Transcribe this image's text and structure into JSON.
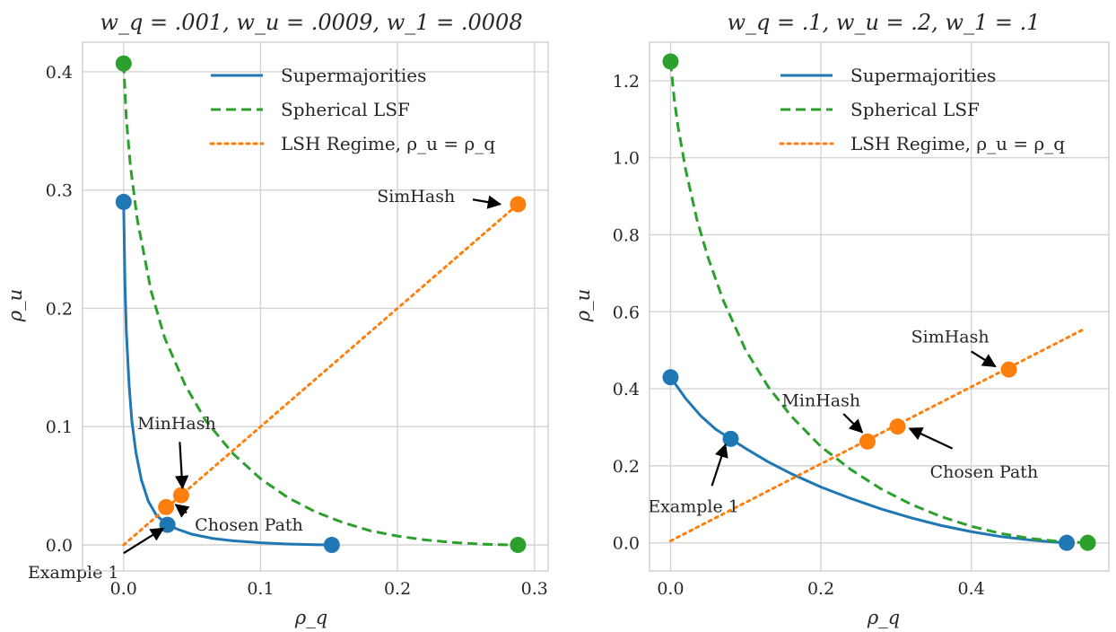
{
  "colors": {
    "supermajorities": "#1f77b4",
    "lsf": "#2ca02c",
    "lsh": "#ff7f0e",
    "arrow": "#000000"
  },
  "chart_data": [
    {
      "type": "line",
      "title": "w_q = .001, w_u = .0009, w_1 = .0008",
      "xlabel": "ρ_q",
      "ylabel": "ρ_u",
      "xlim": [
        -0.03,
        0.31
      ],
      "ylim": [
        -0.022,
        0.425
      ],
      "xticks": [
        0.0,
        0.1,
        0.2,
        0.3
      ],
      "xtick_labels": [
        "0.0",
        "0.1",
        "0.2",
        "0.3"
      ],
      "yticks": [
        0.0,
        0.1,
        0.2,
        0.3,
        0.4
      ],
      "ytick_labels": [
        "0.0",
        "0.1",
        "0.2",
        "0.3",
        "0.4"
      ],
      "grid": true,
      "legend_position": "top-right",
      "series": [
        {
          "name": "Supermajorities",
          "style": "solid",
          "color_key": "supermajorities",
          "x": [
            0.0,
            0.001,
            0.002,
            0.004,
            0.006,
            0.009,
            0.013,
            0.018,
            0.024,
            0.032,
            0.04,
            0.05,
            0.065,
            0.08,
            0.1,
            0.12,
            0.14,
            0.152
          ],
          "y": [
            0.29,
            0.22,
            0.18,
            0.135,
            0.105,
            0.078,
            0.055,
            0.037,
            0.025,
            0.017,
            0.013,
            0.009,
            0.0055,
            0.0035,
            0.0018,
            0.0008,
            0.0002,
            0.0
          ]
        },
        {
          "name": "Spherical LSF",
          "style": "dashed",
          "color_key": "lsf",
          "x": [
            0.0,
            0.002,
            0.005,
            0.01,
            0.02,
            0.03,
            0.045,
            0.06,
            0.08,
            0.1,
            0.12,
            0.14,
            0.16,
            0.18,
            0.2,
            0.22,
            0.24,
            0.26,
            0.275,
            0.288
          ],
          "y": [
            0.407,
            0.36,
            0.32,
            0.275,
            0.215,
            0.175,
            0.135,
            0.105,
            0.077,
            0.056,
            0.04,
            0.028,
            0.019,
            0.012,
            0.0075,
            0.0043,
            0.0021,
            0.0008,
            0.0002,
            0.0
          ]
        },
        {
          "name": "LSH Regime, ρ_u = ρ_q",
          "style": "dotted",
          "color_key": "lsh",
          "x": [
            0.0,
            0.288
          ],
          "y": [
            0.0,
            0.288
          ]
        }
      ],
      "points": [
        {
          "x": 0.0,
          "y": 0.29,
          "color_key": "supermajorities"
        },
        {
          "x": 0.032,
          "y": 0.017,
          "color_key": "supermajorities"
        },
        {
          "x": 0.152,
          "y": 0.0,
          "color_key": "supermajorities"
        },
        {
          "x": 0.0,
          "y": 0.407,
          "color_key": "lsf"
        },
        {
          "x": 0.288,
          "y": 0.0,
          "color_key": "lsf"
        },
        {
          "x": 0.031,
          "y": 0.032,
          "color_key": "lsh"
        },
        {
          "x": 0.042,
          "y": 0.042,
          "color_key": "lsh"
        },
        {
          "x": 0.288,
          "y": 0.288,
          "color_key": "lsh"
        }
      ],
      "annotations": [
        {
          "text": "SimHash",
          "text_x": 0.185,
          "text_y": 0.29,
          "anchor": "start",
          "target_x": 0.275,
          "target_y": 0.288,
          "tail_x": 0.255,
          "tail_y": 0.292
        },
        {
          "text": "MinHash",
          "text_x": 0.01,
          "text_y": 0.098,
          "anchor": "start",
          "target_x": 0.043,
          "target_y": 0.048,
          "tail_x": 0.041,
          "tail_y": 0.087
        },
        {
          "text": "Chosen Path",
          "text_x": 0.052,
          "text_y": 0.012,
          "anchor": "start",
          "target_x": 0.038,
          "target_y": 0.034,
          "tail_x": 0.046,
          "tail_y": 0.027
        },
        {
          "text": "Example 1",
          "text_x": -0.07,
          "text_y": -0.028,
          "anchor": "start",
          "target_x": 0.029,
          "target_y": 0.014,
          "tail_x": 0.0,
          "tail_y": -0.007
        }
      ]
    },
    {
      "type": "line",
      "title": "w_q = .1, w_u = .2, w_1 = .1",
      "xlabel": "ρ_q",
      "ylabel": "ρ_u",
      "xlim": [
        -0.028,
        0.583
      ],
      "ylim": [
        -0.073,
        1.3
      ],
      "xticks": [
        0.0,
        0.2,
        0.4
      ],
      "xtick_labels": [
        "0.0",
        "0.2",
        "0.4"
      ],
      "yticks": [
        0.0,
        0.2,
        0.4,
        0.6,
        0.8,
        1.0,
        1.2
      ],
      "ytick_labels": [
        "0.0",
        "0.2",
        "0.4",
        "0.6",
        "0.8",
        "1.0",
        "1.2"
      ],
      "grid": true,
      "legend_position": "top-right",
      "series": [
        {
          "name": "Supermajorities",
          "style": "solid",
          "color_key": "supermajorities",
          "x": [
            0.0,
            0.02,
            0.04,
            0.06,
            0.08,
            0.1,
            0.13,
            0.16,
            0.2,
            0.24,
            0.28,
            0.32,
            0.36,
            0.4,
            0.44,
            0.48,
            0.51,
            0.527
          ],
          "y": [
            0.43,
            0.375,
            0.33,
            0.295,
            0.27,
            0.245,
            0.21,
            0.18,
            0.145,
            0.115,
            0.088,
            0.065,
            0.045,
            0.029,
            0.016,
            0.007,
            0.002,
            0.0
          ]
        },
        {
          "name": "Spherical LSF",
          "style": "dashed",
          "color_key": "lsf",
          "x": [
            0.0,
            0.005,
            0.01,
            0.02,
            0.035,
            0.05,
            0.07,
            0.1,
            0.13,
            0.16,
            0.2,
            0.24,
            0.28,
            0.32,
            0.36,
            0.4,
            0.44,
            0.48,
            0.52,
            0.555
          ],
          "y": [
            1.25,
            1.15,
            1.08,
            0.97,
            0.84,
            0.74,
            0.63,
            0.5,
            0.405,
            0.33,
            0.25,
            0.19,
            0.14,
            0.1,
            0.068,
            0.043,
            0.024,
            0.011,
            0.003,
            0.0
          ]
        },
        {
          "name": "LSH Regime, ρ_u = ρ_q",
          "style": "dotted",
          "color_key": "lsh",
          "x": [
            0.0,
            0.55
          ],
          "y": [
            0.005,
            0.555
          ]
        }
      ],
      "points": [
        {
          "x": 0.0,
          "y": 0.43,
          "color_key": "supermajorities"
        },
        {
          "x": 0.08,
          "y": 0.27,
          "color_key": "supermajorities"
        },
        {
          "x": 0.527,
          "y": 0.0,
          "color_key": "supermajorities"
        },
        {
          "x": 0.0,
          "y": 1.25,
          "color_key": "lsf"
        },
        {
          "x": 0.555,
          "y": 0.0,
          "color_key": "lsf"
        },
        {
          "x": 0.262,
          "y": 0.263,
          "color_key": "lsh"
        },
        {
          "x": 0.302,
          "y": 0.302,
          "color_key": "lsh"
        },
        {
          "x": 0.45,
          "y": 0.45,
          "color_key": "lsh"
        }
      ],
      "annotations": [
        {
          "text": "SimHash",
          "text_x": 0.32,
          "text_y": 0.52,
          "anchor": "start",
          "target_x": 0.432,
          "target_y": 0.458,
          "tail_x": 0.4,
          "tail_y": 0.497
        },
        {
          "text": "MinHash",
          "text_x": 0.148,
          "text_y": 0.355,
          "anchor": "start",
          "target_x": 0.255,
          "target_y": 0.287,
          "tail_x": 0.23,
          "tail_y": 0.335
        },
        {
          "text": "Chosen Path",
          "text_x": 0.345,
          "text_y": 0.17,
          "anchor": "start",
          "target_x": 0.318,
          "target_y": 0.297,
          "tail_x": 0.375,
          "tail_y": 0.245
        },
        {
          "text": "Example 1",
          "text_x": -0.03,
          "text_y": 0.08,
          "anchor": "start",
          "target_x": 0.073,
          "target_y": 0.255,
          "tail_x": 0.055,
          "tail_y": 0.148
        }
      ]
    }
  ]
}
